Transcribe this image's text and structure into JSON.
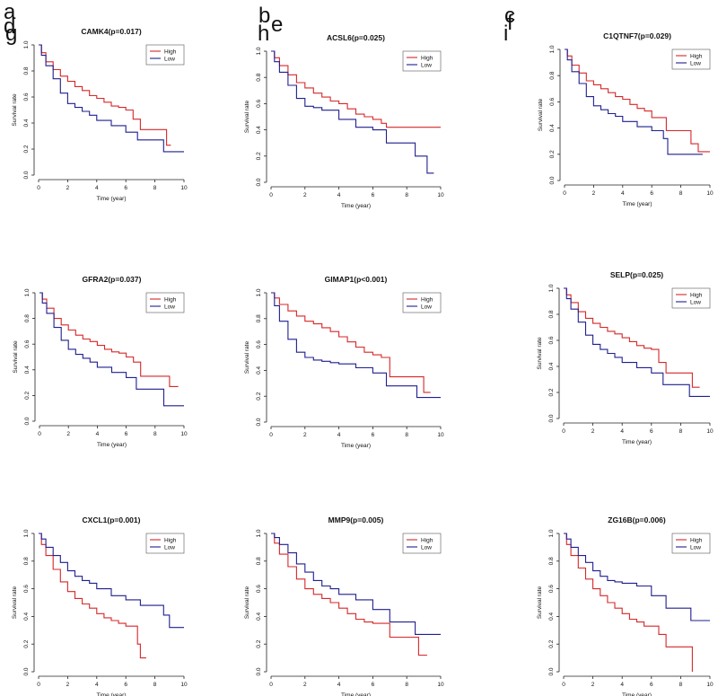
{
  "figure": {
    "colors": {
      "high": "#d62728",
      "low": "#1f1f8f",
      "axis": "#222222",
      "legend_border": "#555555"
    },
    "panels": [
      {
        "letter": "a",
        "title": "CAMK4(p=0.017)"
      },
      {
        "letter": "b",
        "title": "ACSL6(p=0.025)"
      },
      {
        "letter": "c",
        "title": "C1QTNF7(p=0.029)"
      },
      {
        "letter": "d",
        "title": "GFRA2(p=0.037)"
      },
      {
        "letter": "e",
        "title": "GIMAP1(p<0.001)"
      },
      {
        "letter": "f",
        "title": "SELP(p=0.025)"
      },
      {
        "letter": "g",
        "title": "CXCL1(p=0.001)"
      },
      {
        "letter": "h",
        "title": "MMP9(p=0.005)"
      },
      {
        "letter": "i",
        "title": "ZG16B(p=0.006)"
      }
    ]
  },
  "chart_data": [
    {
      "type": "line",
      "title": "CAMK4(p=0.017)",
      "xlabel": "Time (year)",
      "ylabel": "Survival rate",
      "xlim": [
        0,
        10
      ],
      "ylim": [
        0,
        1
      ],
      "x_ticks": [
        0,
        2,
        4,
        6,
        8,
        10
      ],
      "y_ticks": [
        0,
        0.2,
        0.4,
        0.6,
        0.8,
        1.0
      ],
      "legend": [
        "High",
        "Low"
      ],
      "series": [
        {
          "name": "High",
          "x": [
            0,
            0.2,
            0.5,
            1,
            1.5,
            2,
            2.5,
            3,
            3.5,
            4,
            4.5,
            5,
            5.5,
            6,
            6.5,
            7,
            8.8,
            9.1
          ],
          "y": [
            1,
            0.94,
            0.87,
            0.81,
            0.76,
            0.72,
            0.68,
            0.65,
            0.61,
            0.59,
            0.56,
            0.53,
            0.52,
            0.5,
            0.43,
            0.35,
            0.23,
            0.23
          ]
        },
        {
          "name": "Low",
          "x": [
            0,
            0.2,
            0.5,
            1,
            1.5,
            2,
            2.5,
            3,
            3.5,
            4,
            5,
            6,
            6.8,
            8.6,
            10
          ],
          "y": [
            1,
            0.92,
            0.84,
            0.74,
            0.63,
            0.55,
            0.52,
            0.49,
            0.46,
            0.42,
            0.38,
            0.33,
            0.27,
            0.18,
            0.18
          ]
        }
      ]
    },
    {
      "type": "line",
      "title": "ACSL6(p=0.025)",
      "xlabel": "Time (year)",
      "ylabel": "Survival rate",
      "xlim": [
        0,
        10
      ],
      "ylim": [
        0,
        1
      ],
      "x_ticks": [
        0,
        2,
        4,
        6,
        8,
        10
      ],
      "y_ticks": [
        0,
        0.2,
        0.4,
        0.6,
        0.8,
        1.0
      ],
      "legend": [
        "High",
        "Low"
      ],
      "series": [
        {
          "name": "High",
          "x": [
            0,
            0.2,
            0.5,
            1,
            1.5,
            2,
            2.5,
            3,
            3.5,
            4,
            4.5,
            5,
            5.5,
            6,
            6.5,
            6.8,
            10
          ],
          "y": [
            1,
            0.95,
            0.89,
            0.82,
            0.76,
            0.72,
            0.68,
            0.65,
            0.62,
            0.6,
            0.56,
            0.52,
            0.5,
            0.48,
            0.45,
            0.42,
            0.42
          ]
        },
        {
          "name": "Low",
          "x": [
            0,
            0.2,
            0.5,
            1,
            1.5,
            2,
            2.5,
            3,
            4,
            5,
            6,
            6.8,
            8.5,
            9.2,
            9.6
          ],
          "y": [
            1,
            0.92,
            0.84,
            0.74,
            0.64,
            0.58,
            0.57,
            0.55,
            0.48,
            0.42,
            0.4,
            0.3,
            0.2,
            0.07,
            0.07
          ]
        }
      ]
    },
    {
      "type": "line",
      "title": "C1QTNF7(p=0.029)",
      "xlabel": "Time (year)",
      "ylabel": "Survival rate",
      "xlim": [
        0,
        10
      ],
      "ylim": [
        0,
        1
      ],
      "x_ticks": [
        0,
        2,
        4,
        6,
        8,
        10
      ],
      "y_ticks": [
        0,
        0.2,
        0.4,
        0.6,
        0.8,
        1.0
      ],
      "legend": [
        "High",
        "Low"
      ],
      "series": [
        {
          "name": "High",
          "x": [
            0,
            0.2,
            0.5,
            1,
            1.5,
            2,
            2.5,
            3,
            3.5,
            4,
            4.5,
            5,
            5.5,
            6,
            7,
            8.7,
            9.2,
            10
          ],
          "y": [
            1,
            0.95,
            0.88,
            0.82,
            0.76,
            0.73,
            0.7,
            0.67,
            0.64,
            0.62,
            0.58,
            0.55,
            0.53,
            0.48,
            0.38,
            0.28,
            0.22,
            0.22
          ]
        },
        {
          "name": "Low",
          "x": [
            0,
            0.2,
            0.5,
            1,
            1.5,
            2,
            2.5,
            3,
            3.5,
            4,
            5,
            6,
            6.8,
            7.1,
            9.5
          ],
          "y": [
            1,
            0.92,
            0.83,
            0.74,
            0.64,
            0.57,
            0.54,
            0.51,
            0.49,
            0.45,
            0.41,
            0.38,
            0.32,
            0.2,
            0.2
          ]
        }
      ]
    },
    {
      "type": "line",
      "title": "GFRA2(p=0.037)",
      "xlabel": "Time (year)",
      "ylabel": "Survival rate",
      "xlim": [
        0,
        10
      ],
      "ylim": [
        0,
        1
      ],
      "x_ticks": [
        0,
        2,
        4,
        6,
        8,
        10
      ],
      "y_ticks": [
        0,
        0.2,
        0.4,
        0.6,
        0.8,
        1.0
      ],
      "legend": [
        "High",
        "Low"
      ],
      "series": [
        {
          "name": "High",
          "x": [
            0,
            0.2,
            0.5,
            1,
            1.5,
            2,
            2.5,
            3,
            3.5,
            4,
            4.5,
            5,
            5.5,
            6,
            6.5,
            7,
            9,
            9.6
          ],
          "y": [
            1,
            0.95,
            0.88,
            0.8,
            0.75,
            0.71,
            0.67,
            0.64,
            0.62,
            0.59,
            0.56,
            0.54,
            0.53,
            0.5,
            0.46,
            0.35,
            0.27,
            0.27
          ]
        },
        {
          "name": "Low",
          "x": [
            0,
            0.2,
            0.5,
            1,
            1.5,
            2,
            2.5,
            3,
            3.5,
            4,
            5,
            6,
            6.7,
            8.6,
            10
          ],
          "y": [
            1,
            0.92,
            0.84,
            0.73,
            0.63,
            0.56,
            0.52,
            0.49,
            0.46,
            0.42,
            0.38,
            0.34,
            0.25,
            0.12,
            0.12
          ]
        }
      ]
    },
    {
      "type": "line",
      "title": "GIMAP1(p<0.001)",
      "xlabel": "Time (year)",
      "ylabel": "Survival rate",
      "xlim": [
        0,
        10
      ],
      "ylim": [
        0,
        1
      ],
      "x_ticks": [
        0,
        2,
        4,
        6,
        8,
        10
      ],
      "y_ticks": [
        0,
        0.2,
        0.4,
        0.6,
        0.8,
        1.0
      ],
      "legend": [
        "High",
        "Low"
      ],
      "series": [
        {
          "name": "High",
          "x": [
            0,
            0.2,
            0.5,
            1,
            1.5,
            2,
            2.5,
            3,
            3.5,
            4,
            4.5,
            5,
            5.5,
            6,
            6.5,
            7,
            9,
            9.4
          ],
          "y": [
            1,
            0.96,
            0.91,
            0.86,
            0.82,
            0.78,
            0.76,
            0.73,
            0.7,
            0.66,
            0.62,
            0.58,
            0.54,
            0.52,
            0.5,
            0.35,
            0.23,
            0.23
          ]
        },
        {
          "name": "Low",
          "x": [
            0,
            0.2,
            0.5,
            1,
            1.5,
            2,
            2.5,
            3,
            3.5,
            4,
            5,
            6,
            6.8,
            8.6,
            10
          ],
          "y": [
            1,
            0.9,
            0.78,
            0.64,
            0.54,
            0.5,
            0.48,
            0.47,
            0.46,
            0.45,
            0.42,
            0.38,
            0.28,
            0.19,
            0.19
          ]
        }
      ]
    },
    {
      "type": "line",
      "title": "SELP(p=0.025)",
      "xlabel": "Time (year)",
      "ylabel": "Survival rate",
      "xlim": [
        0,
        10
      ],
      "ylim": [
        0,
        1
      ],
      "x_ticks": [
        0,
        2,
        4,
        6,
        8,
        10
      ],
      "y_ticks": [
        0,
        0.2,
        0.4,
        0.6,
        0.8,
        1.0
      ],
      "legend": [
        "High",
        "Low"
      ],
      "series": [
        {
          "name": "High",
          "x": [
            0,
            0.2,
            0.5,
            1,
            1.5,
            2,
            2.5,
            3,
            3.5,
            4,
            4.5,
            5,
            5.5,
            6,
            6.5,
            7,
            8.8,
            9.3
          ],
          "y": [
            1,
            0.95,
            0.89,
            0.82,
            0.77,
            0.73,
            0.7,
            0.67,
            0.65,
            0.62,
            0.59,
            0.56,
            0.54,
            0.53,
            0.43,
            0.35,
            0.24,
            0.24
          ]
        },
        {
          "name": "Low",
          "x": [
            0,
            0.2,
            0.5,
            1,
            1.5,
            2,
            2.5,
            3,
            3.5,
            4,
            5,
            6,
            6.8,
            8.6,
            10
          ],
          "y": [
            1,
            0.92,
            0.84,
            0.74,
            0.64,
            0.57,
            0.53,
            0.5,
            0.47,
            0.43,
            0.39,
            0.35,
            0.26,
            0.17,
            0.17
          ]
        }
      ]
    },
    {
      "type": "line",
      "title": "CXCL1(p=0.001)",
      "xlabel": "Time (year)",
      "ylabel": "Survival rate",
      "xlim": [
        0,
        10
      ],
      "ylim": [
        0,
        1
      ],
      "x_ticks": [
        0,
        2,
        4,
        6,
        8,
        10
      ],
      "y_ticks": [
        0,
        0.2,
        0.4,
        0.6,
        0.8,
        1.0
      ],
      "legend": [
        "High",
        "Low"
      ],
      "series": [
        {
          "name": "High",
          "x": [
            0,
            0.2,
            0.5,
            1,
            1.5,
            2,
            2.5,
            3,
            3.5,
            4,
            4.5,
            5,
            5.5,
            6,
            6.5,
            6.8,
            7,
            7.4
          ],
          "y": [
            1,
            0.92,
            0.84,
            0.74,
            0.65,
            0.58,
            0.53,
            0.49,
            0.46,
            0.42,
            0.39,
            0.37,
            0.35,
            0.33,
            0.33,
            0.2,
            0.1,
            0.1
          ]
        },
        {
          "name": "Low",
          "x": [
            0,
            0.2,
            0.5,
            1,
            1.5,
            2,
            2.5,
            3,
            3.5,
            4,
            5,
            6,
            7,
            8.6,
            9,
            10
          ],
          "y": [
            1,
            0.96,
            0.9,
            0.84,
            0.79,
            0.73,
            0.69,
            0.66,
            0.64,
            0.6,
            0.55,
            0.52,
            0.48,
            0.41,
            0.32,
            0.32
          ]
        }
      ]
    },
    {
      "type": "line",
      "title": "MMP9(p=0.005)",
      "xlabel": "Time (year)",
      "ylabel": "Survival rate",
      "xlim": [
        0,
        10
      ],
      "ylim": [
        0,
        1
      ],
      "x_ticks": [
        0,
        2,
        4,
        6,
        8,
        10
      ],
      "y_ticks": [
        0,
        0.2,
        0.4,
        0.6,
        0.8,
        1.0
      ],
      "legend": [
        "High",
        "Low"
      ],
      "series": [
        {
          "name": "High",
          "x": [
            0,
            0.2,
            0.5,
            1,
            1.5,
            2,
            2.5,
            3,
            3.5,
            4,
            4.5,
            5,
            5.5,
            6,
            6.5,
            7,
            8.7,
            9.2
          ],
          "y": [
            1,
            0.93,
            0.85,
            0.76,
            0.67,
            0.6,
            0.56,
            0.53,
            0.5,
            0.46,
            0.42,
            0.38,
            0.36,
            0.35,
            0.35,
            0.25,
            0.12,
            0.12
          ]
        },
        {
          "name": "Low",
          "x": [
            0,
            0.2,
            0.5,
            1,
            1.5,
            2,
            2.5,
            3,
            3.5,
            4,
            5,
            6,
            7,
            8.5,
            10
          ],
          "y": [
            1,
            0.97,
            0.92,
            0.86,
            0.78,
            0.72,
            0.66,
            0.62,
            0.6,
            0.56,
            0.52,
            0.45,
            0.36,
            0.27,
            0.27
          ]
        }
      ]
    },
    {
      "type": "line",
      "title": "ZG16B(p=0.006)",
      "xlabel": "Time (year)",
      "ylabel": "Survival rate",
      "xlim": [
        0,
        10
      ],
      "ylim": [
        0,
        1
      ],
      "x_ticks": [
        0,
        2,
        4,
        6,
        8,
        10
      ],
      "y_ticks": [
        0,
        0.2,
        0.4,
        0.6,
        0.8,
        1.0
      ],
      "legend": [
        "High",
        "Low"
      ],
      "series": [
        {
          "name": "High",
          "x": [
            0,
            0.2,
            0.5,
            1,
            1.5,
            2,
            2.5,
            3,
            3.5,
            4,
            4.5,
            5,
            5.5,
            6,
            6.5,
            7,
            8.8,
            8.8
          ],
          "y": [
            1,
            0.92,
            0.84,
            0.75,
            0.67,
            0.6,
            0.55,
            0.5,
            0.46,
            0.42,
            0.38,
            0.36,
            0.33,
            0.33,
            0.27,
            0.18,
            0.18,
            0
          ]
        },
        {
          "name": "Low",
          "x": [
            0,
            0.2,
            0.5,
            1,
            1.5,
            2,
            2.5,
            3,
            3.5,
            4,
            5,
            6,
            7,
            8.7,
            10
          ],
          "y": [
            1,
            0.96,
            0.9,
            0.84,
            0.79,
            0.73,
            0.69,
            0.66,
            0.65,
            0.64,
            0.62,
            0.55,
            0.46,
            0.37,
            0.37
          ]
        }
      ]
    }
  ]
}
